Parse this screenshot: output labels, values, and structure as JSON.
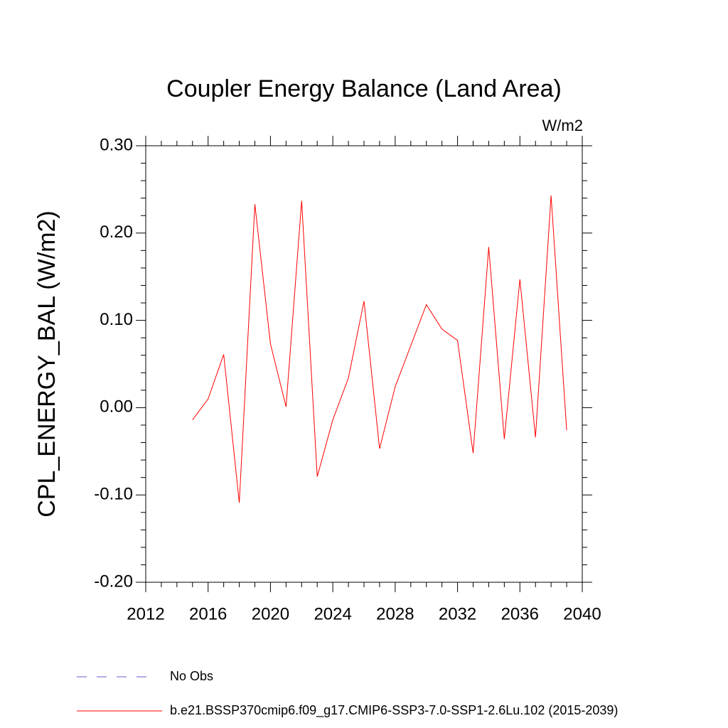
{
  "chart_data": {
    "type": "line",
    "title": "Coupler Energy Balance (Land Area)",
    "units": "W/m2",
    "y_label": "CPL_ENERGY_BAL  (W/m2)",
    "x": [
      2015,
      2016,
      2017,
      2018,
      2019,
      2020,
      2021,
      2022,
      2023,
      2024,
      2025,
      2026,
      2027,
      2028,
      2029,
      2030,
      2031,
      2032,
      2033,
      2034,
      2035,
      2036,
      2037,
      2038,
      2039
    ],
    "series": [
      {
        "name": "No Obs",
        "color": "#6a5acd",
        "dashed": true,
        "values": [
          null,
          null,
          null,
          null,
          null,
          null,
          null,
          null,
          null,
          null,
          null,
          null,
          null,
          null,
          null,
          null,
          null,
          null,
          null,
          null,
          null,
          null,
          null,
          null,
          null
        ]
      },
      {
        "name": "b.e21.BSSP370cmip6.f09_g17.CMIP6-SSP3-7.0-SSP1-2.6Lu.102 (2015-2039)",
        "color": "#ff0000",
        "dashed": false,
        "values": [
          -0.014,
          0.01,
          0.061,
          -0.109,
          0.233,
          0.073,
          0.001,
          0.237,
          -0.079,
          -0.014,
          0.034,
          0.122,
          -0.047,
          0.024,
          0.071,
          0.118,
          0.09,
          0.077,
          -0.052,
          0.184,
          -0.036,
          0.147,
          -0.034,
          0.243,
          -0.026
        ]
      }
    ],
    "xlim": [
      2012,
      2040
    ],
    "xticks": [
      2012,
      2016,
      2020,
      2024,
      2028,
      2032,
      2036,
      2040
    ],
    "ylim": [
      -0.2,
      0.3
    ],
    "yticks": [
      {
        "value": -0.2,
        "label": "-0.20"
      },
      {
        "value": -0.1,
        "label": "-0.10"
      },
      {
        "value": 0,
        "label": "0.00"
      },
      {
        "value": 0.1,
        "label": "0.10"
      },
      {
        "value": 0.2,
        "label": "0.20"
      },
      {
        "value": 0.3,
        "label": "0.30"
      }
    ],
    "grid": false
  }
}
